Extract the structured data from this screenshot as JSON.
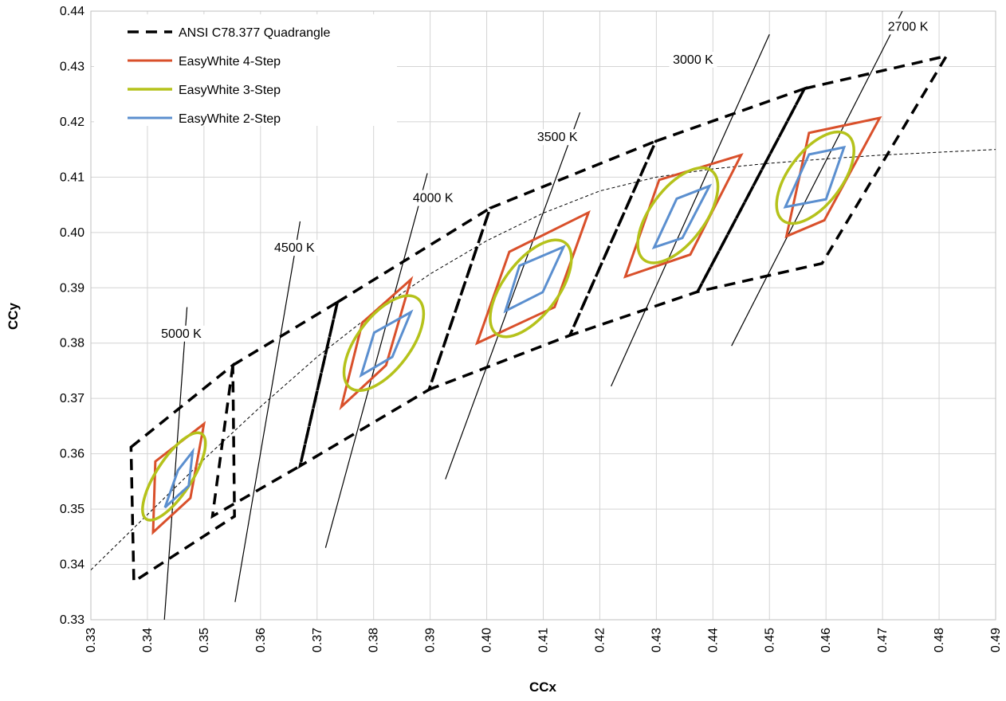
{
  "chart_data": {
    "type": "scatter",
    "xlabel": "CCx",
    "ylabel": "CCy",
    "xlim": [
      0.33,
      0.49
    ],
    "ylim": [
      0.33,
      0.44
    ],
    "x_ticks": [
      "0.33",
      "0.34",
      "0.35",
      "0.36",
      "0.37",
      "0.38",
      "0.39",
      "0.40",
      "0.41",
      "0.42",
      "0.43",
      "0.44",
      "0.45",
      "0.46",
      "0.47",
      "0.48",
      "0.49"
    ],
    "y_ticks": [
      "0.33",
      "0.34",
      "0.35",
      "0.36",
      "0.37",
      "0.38",
      "0.39",
      "0.40",
      "0.41",
      "0.42",
      "0.43",
      "0.44"
    ],
    "grid": true,
    "legend_position": "top-left",
    "legend": [
      {
        "label": "ANSI C78.377 Quadrangle",
        "color": "#000000",
        "style": "dashed"
      },
      {
        "label": "EasyWhite 4-Step",
        "color": "#d9502b",
        "style": "solid"
      },
      {
        "label": "EasyWhite 3-Step",
        "color": "#b5c21b",
        "style": "solid"
      },
      {
        "label": "EasyWhite 2-Step",
        "color": "#5b8fcf",
        "style": "solid"
      }
    ],
    "series": [
      {
        "name": "ANSI C78.377 Quadrangle",
        "color": "#000000",
        "polygons": [
          [
            [
              0.3371,
              0.3612
            ],
            [
              0.3551,
              0.376
            ],
            [
              0.3554,
              0.3487
            ],
            [
              0.3376,
              0.3369
            ]
          ],
          [
            [
              0.3551,
              0.376
            ],
            [
              0.3736,
              0.3874
            ],
            [
              0.367,
              0.3578
            ],
            [
              0.3515,
              0.3487
            ]
          ],
          [
            [
              0.3736,
              0.3874
            ],
            [
              0.4006,
              0.4044
            ],
            [
              0.3898,
              0.3716
            ],
            [
              0.367,
              0.3578
            ]
          ],
          [
            [
              0.4006,
              0.4044
            ],
            [
              0.4299,
              0.4165
            ],
            [
              0.4147,
              0.3814
            ],
            [
              0.3898,
              0.3716
            ]
          ],
          [
            [
              0.4299,
              0.4165
            ],
            [
              0.4562,
              0.426
            ],
            [
              0.4373,
              0.3893
            ],
            [
              0.4147,
              0.3814
            ]
          ],
          [
            [
              0.4562,
              0.426
            ],
            [
              0.4813,
              0.4319
            ],
            [
              0.4593,
              0.3944
            ],
            [
              0.4373,
              0.3893
            ]
          ]
        ]
      },
      {
        "name": "EasyWhite 4-Step",
        "color": "#d9502b",
        "polygons": [
          [
            [
              0.3414,
              0.3586
            ],
            [
              0.35,
              0.3654
            ],
            [
              0.3476,
              0.352
            ],
            [
              0.341,
              0.3458
            ]
          ],
          [
            [
              0.378,
              0.3837
            ],
            [
              0.3866,
              0.3915
            ],
            [
              0.3822,
              0.376
            ],
            [
              0.3743,
              0.3685
            ]
          ],
          [
            [
              0.404,
              0.3965
            ],
            [
              0.418,
              0.4036
            ],
            [
              0.412,
              0.3865
            ],
            [
              0.3983,
              0.38
            ]
          ],
          [
            [
              0.4305,
              0.4095
            ],
            [
              0.445,
              0.414
            ],
            [
              0.436,
              0.396
            ],
            [
              0.4245,
              0.392
            ]
          ],
          [
            [
              0.457,
              0.418
            ],
            [
              0.4695,
              0.4207
            ],
            [
              0.4597,
              0.4022
            ],
            [
              0.453,
              0.3993
            ]
          ]
        ]
      },
      {
        "name": "EasyWhite 3-Step",
        "color": "#b5c21b",
        "ellipses": [
          {
            "cx": 0.3447,
            "cy": 0.3559,
            "a": 0.009,
            "b": 0.0032,
            "angle_deg": 57
          },
          {
            "cx": 0.3818,
            "cy": 0.38,
            "a": 0.0099,
            "b": 0.0048,
            "angle_deg": 53
          },
          {
            "cx": 0.4078,
            "cy": 0.3899,
            "a": 0.0101,
            "b": 0.0049,
            "angle_deg": 53
          },
          {
            "cx": 0.4338,
            "cy": 0.4031,
            "a": 0.0099,
            "b": 0.0049,
            "angle_deg": 53
          },
          {
            "cx": 0.4581,
            "cy": 0.4099,
            "a": 0.0095,
            "b": 0.0048,
            "angle_deg": 53
          }
        ]
      },
      {
        "name": "EasyWhite 2-Step",
        "color": "#5b8fcf",
        "polygons": [
          [
            [
              0.3454,
              0.357
            ],
            [
              0.348,
              0.3604
            ],
            [
              0.3473,
              0.3542
            ],
            [
              0.3431,
              0.3503
            ]
          ],
          [
            [
              0.3801,
              0.3819
            ],
            [
              0.3866,
              0.3856
            ],
            [
              0.3833,
              0.3775
            ],
            [
              0.3778,
              0.3742
            ]
          ],
          [
            [
              0.4058,
              0.394
            ],
            [
              0.4136,
              0.3974
            ],
            [
              0.4099,
              0.3892
            ],
            [
              0.4033,
              0.3858
            ]
          ],
          [
            [
              0.4336,
              0.4061
            ],
            [
              0.4394,
              0.4084
            ],
            [
              0.4346,
              0.399
            ],
            [
              0.4296,
              0.3973
            ]
          ],
          [
            [
              0.457,
              0.4141
            ],
            [
              0.4632,
              0.4154
            ],
            [
              0.46,
              0.406
            ],
            [
              0.4528,
              0.4046
            ]
          ]
        ]
      }
    ],
    "isotherms": [
      {
        "label": "5000 K",
        "points": [
          [
            0.343,
            0.33
          ],
          [
            0.347,
            0.3865
          ]
        ],
        "label_pos": [
          0.346,
          0.381
        ]
      },
      {
        "label": "4500 K",
        "points": [
          [
            0.3555,
            0.3332
          ],
          [
            0.367,
            0.402
          ]
        ],
        "label_pos": [
          0.366,
          0.3965
        ]
      },
      {
        "label": "4000 K",
        "points": [
          [
            0.3715,
            0.343
          ],
          [
            0.3895,
            0.4107
          ]
        ],
        "label_pos": [
          0.3905,
          0.4055
        ]
      },
      {
        "label": "3500 K",
        "points": [
          [
            0.3927,
            0.3554
          ],
          [
            0.4165,
            0.4217
          ]
        ],
        "label_pos": [
          0.4125,
          0.4165
        ]
      },
      {
        "label": "3000 K",
        "points": [
          [
            0.422,
            0.3722
          ],
          [
            0.45,
            0.4358
          ]
        ],
        "label_pos": [
          0.4365,
          0.4305
        ]
      },
      {
        "label": "2700 K",
        "points": [
          [
            0.4433,
            0.3795
          ],
          [
            0.4735,
            0.44
          ]
        ],
        "label_pos": [
          0.4745,
          0.4365
        ]
      }
    ],
    "planckian_locus": [
      [
        0.33,
        0.339
      ],
      [
        0.34,
        0.349
      ],
      [
        0.35,
        0.359
      ],
      [
        0.36,
        0.3685
      ],
      [
        0.37,
        0.3775
      ],
      [
        0.38,
        0.3855
      ],
      [
        0.39,
        0.3925
      ],
      [
        0.4,
        0.3985
      ],
      [
        0.41,
        0.4035
      ],
      [
        0.42,
        0.4075
      ],
      [
        0.43,
        0.41
      ],
      [
        0.44,
        0.4115
      ],
      [
        0.45,
        0.4125
      ],
      [
        0.46,
        0.4133
      ],
      [
        0.47,
        0.414
      ],
      [
        0.48,
        0.4145
      ],
      [
        0.49,
        0.415
      ]
    ]
  }
}
